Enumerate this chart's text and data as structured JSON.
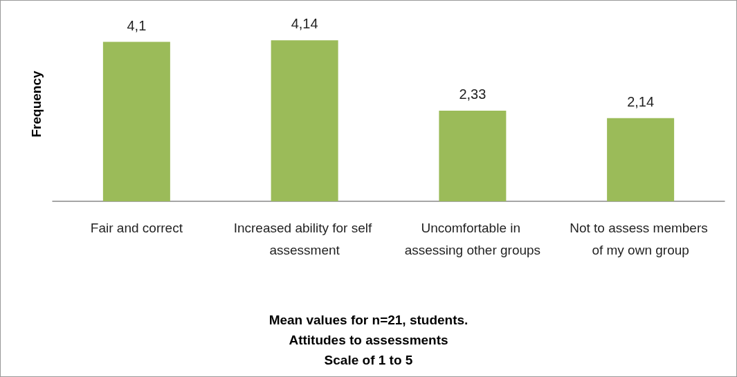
{
  "chart_data": {
    "type": "bar",
    "title": "Mean values for n=21, students.\nAttitudes to assessments\nScale of 1 to 5",
    "ylabel": "Frequency",
    "categories": [
      "Fair and correct",
      "Increased ability for self assessment",
      "Uncomfortable in assessing other groups",
      "Not to assess members of my own group"
    ],
    "values": [
      4.1,
      4.14,
      2.33,
      2.14
    ],
    "value_labels": [
      "4,1",
      "4,14",
      "2,33",
      "2,14"
    ],
    "color": "#9bbb59",
    "tick_labels": "x",
    "grid": false
  }
}
